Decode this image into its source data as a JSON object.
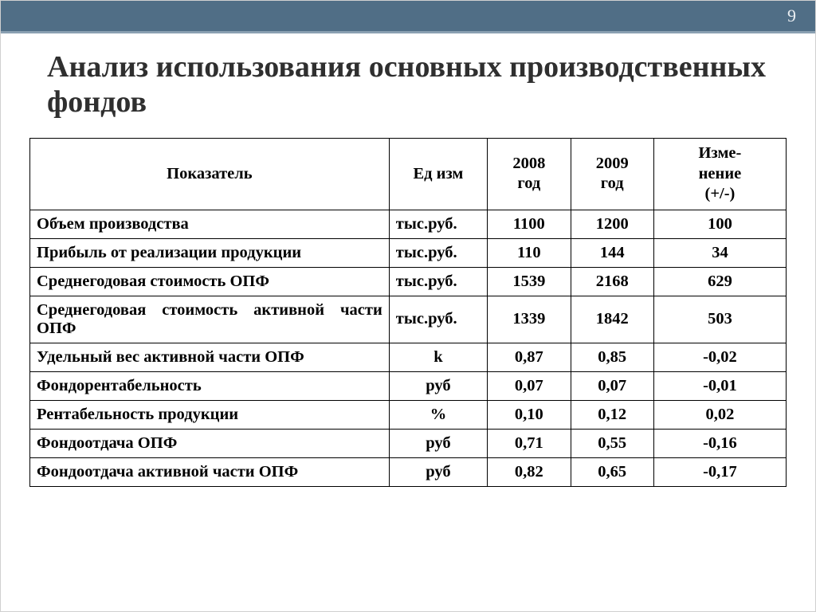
{
  "page_number": "9",
  "title": "Анализ использования основных производственных фондов",
  "colors": {
    "top_bar": "#506e86",
    "accent_line": "#8aa0b2",
    "page_number_text": "#e9eef2",
    "title_text": "#2f2f2f",
    "border": "#000000",
    "background": "#ffffff"
  },
  "typography": {
    "title_font": "Georgia",
    "title_size_pt": 28,
    "title_weight": "bold",
    "body_font": "Times New Roman",
    "cell_size_pt": 15,
    "cell_weight": "bold"
  },
  "table": {
    "column_widths_pct": [
      47.5,
      13,
      11,
      11,
      17.5
    ],
    "headers": {
      "indicator": "Показатель",
      "unit": "Ед изм",
      "year1": "2008\nгод",
      "year2": "2009\nгод",
      "change": "Изме-\nнение\n(+/-)"
    },
    "rows": [
      {
        "indicator": "Объем производства",
        "unit": "тыс.руб.",
        "y1": "1100",
        "y2": "1200",
        "chg": "100",
        "unit_align": "left",
        "justify": false
      },
      {
        "indicator": "Прибыль от реализации продукции",
        "unit": "тыс.руб.",
        "y1": "110",
        "y2": "144",
        "chg": "34",
        "unit_align": "left",
        "justify": false
      },
      {
        "indicator": "Среднегодовая стоимость ОПФ",
        "unit": "тыс.руб.",
        "y1": "1539",
        "y2": "2168",
        "chg": "629",
        "unit_align": "left",
        "justify": false
      },
      {
        "indicator": "Среднегодовая стоимость активной части ОПФ",
        "unit": "тыс.руб.",
        "y1": "1339",
        "y2": "1842",
        "chg": "503",
        "unit_align": "left",
        "justify": true
      },
      {
        "indicator": "Удельный вес активной части ОПФ",
        "unit": "k",
        "y1": "0,87",
        "y2": "0,85",
        "chg": "-0,02",
        "unit_align": "center",
        "justify": false
      },
      {
        "indicator": "Фондорентабельность",
        "unit": "руб",
        "y1": "0,07",
        "y2": "0,07",
        "chg": "-0,01",
        "unit_align": "center",
        "justify": false
      },
      {
        "indicator": "Рентабельность продукции",
        "unit": "%",
        "y1": "0,10",
        "y2": "0,12",
        "chg": "0,02",
        "unit_align": "center",
        "justify": false
      },
      {
        "indicator": "Фондоотдача ОПФ",
        "unit": "руб",
        "y1": "0,71",
        "y2": "0,55",
        "chg": "-0,16",
        "unit_align": "center",
        "justify": false
      },
      {
        "indicator": "Фондоотдача активной части ОПФ",
        "unit": "руб",
        "y1": "0,82",
        "y2": "0,65",
        "chg": "-0,17",
        "unit_align": "center",
        "justify": false
      }
    ]
  }
}
